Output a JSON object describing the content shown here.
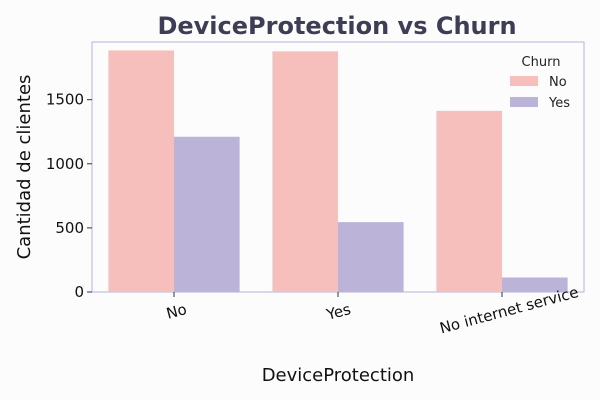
{
  "chart_data": {
    "type": "bar",
    "title": "DeviceProtection vs Churn",
    "xlabel": "DeviceProtection",
    "ylabel": "Cantidad de clientes",
    "categories": [
      "No",
      "Yes",
      "No internet service"
    ],
    "series": [
      {
        "name": "No",
        "values": [
          1884,
          1877,
          1413
        ],
        "color": "#f6bfbb"
      },
      {
        "name": "Yes",
        "values": [
          1211,
          545,
          113
        ],
        "color": "#bbb4d8"
      }
    ],
    "ylim": [
      0,
      1950
    ],
    "yticks": [
      0,
      500,
      1000,
      1500
    ],
    "grid": false,
    "legend": {
      "title": "Churn",
      "placement": "top-right"
    },
    "frame_color": "#b9b2da"
  }
}
